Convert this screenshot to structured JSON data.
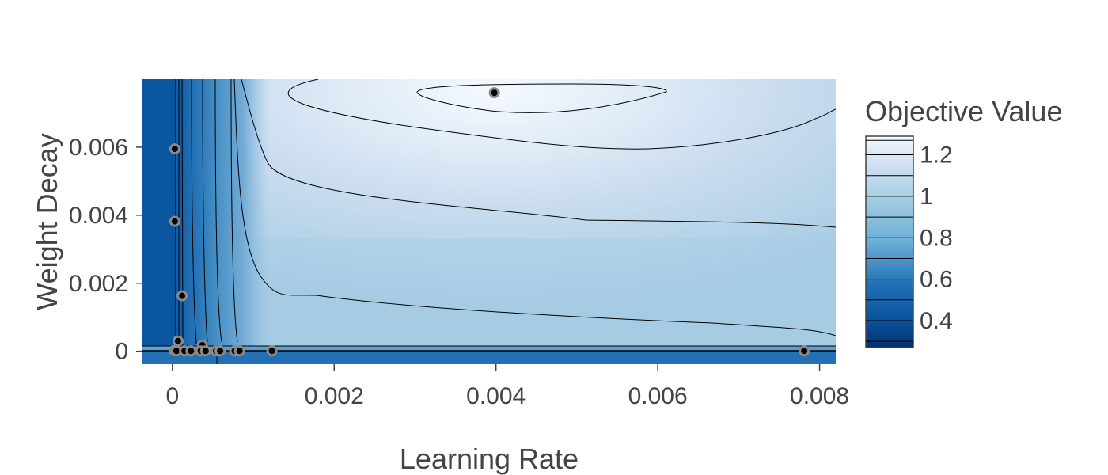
{
  "chart_data": {
    "type": "contour",
    "xlabel": "Learning Rate",
    "ylabel": "Weight Decay",
    "colorbar_title": "Objective Value",
    "colorscale": "Blues (reversed)",
    "xlim": [
      -0.00037,
      0.0082
    ],
    "ylim": [
      -0.00038,
      0.008
    ],
    "x_ticks": [
      {
        "value": 0,
        "label": "0"
      },
      {
        "value": 0.002,
        "label": "0.002"
      },
      {
        "value": 0.004,
        "label": "0.004"
      },
      {
        "value": 0.006,
        "label": "0.006"
      },
      {
        "value": 0.008,
        "label": "0.008"
      }
    ],
    "y_ticks": [
      {
        "value": 0,
        "label": "0"
      },
      {
        "value": 0.002,
        "label": "0.002"
      },
      {
        "value": 0.004,
        "label": "0.004"
      },
      {
        "value": 0.006,
        "label": "0.006"
      }
    ],
    "colorbar": {
      "range": [
        0.27,
        1.29
      ],
      "ticks": [
        {
          "value": 0.4,
          "label": "0.4"
        },
        {
          "value": 0.6,
          "label": "0.6"
        },
        {
          "value": 0.8,
          "label": "0.8"
        },
        {
          "value": 1.0,
          "label": "1"
        },
        {
          "value": 1.2,
          "label": "1.2"
        }
      ],
      "contour_levels": [
        0.3,
        0.4,
        0.5,
        0.6,
        0.7,
        0.8,
        0.9,
        1.0,
        1.1,
        1.2,
        1.27
      ]
    },
    "points": [
      {
        "x": 3e-05,
        "y": 0.00595
      },
      {
        "x": 3e-05,
        "y": 0.00382
      },
      {
        "x": 0.00012,
        "y": 0.00163
      },
      {
        "x": 0.00398,
        "y": 0.0076
      },
      {
        "x": 7e-05,
        "y": 0.0003
      },
      {
        "x": 0.00037,
        "y": 0.00018
      },
      {
        "x": 2e-05,
        "y": 2e-05
      },
      {
        "x": 5e-05,
        "y": 1e-05
      },
      {
        "x": 0.00015,
        "y": 1e-05
      },
      {
        "x": 0.00023,
        "y": 1e-05
      },
      {
        "x": 0.00035,
        "y": 1e-05
      },
      {
        "x": 0.00041,
        "y": 1e-05
      },
      {
        "x": 0.00054,
        "y": 1e-05
      },
      {
        "x": 0.00059,
        "y": 1e-05
      },
      {
        "x": 0.00077,
        "y": 1e-05
      },
      {
        "x": 0.00083,
        "y": 1e-05
      },
      {
        "x": 0.00123,
        "y": 1e-05
      },
      {
        "x": 0.00781,
        "y": 1e-05
      }
    ]
  }
}
